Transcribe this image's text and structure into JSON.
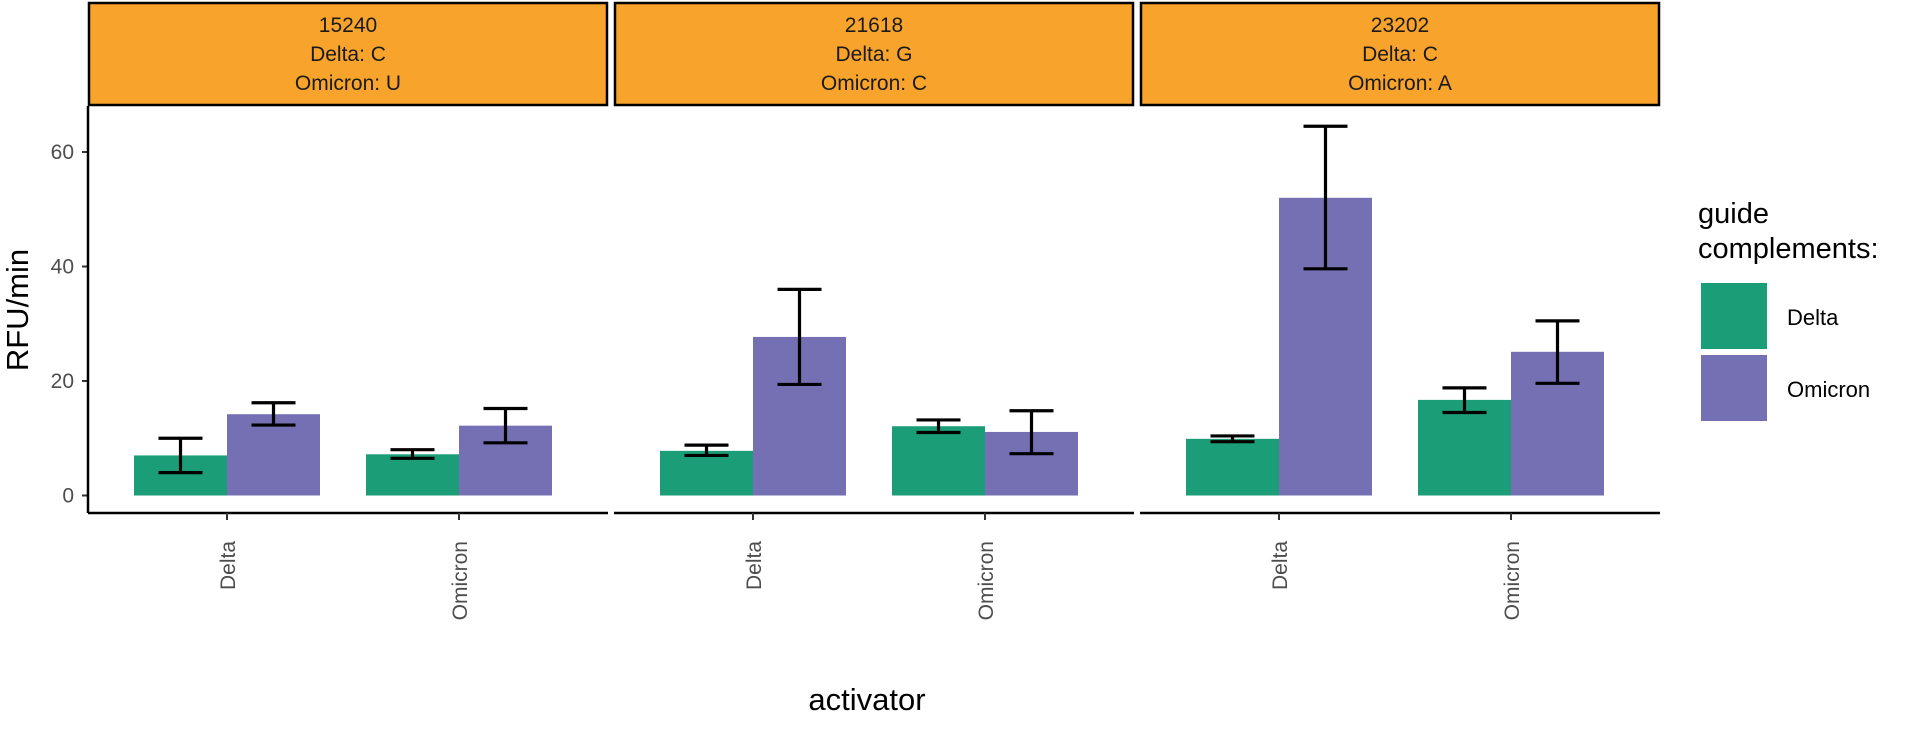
{
  "chart_data": {
    "type": "bar",
    "xlabel": "activator",
    "ylabel": "RFU/min",
    "ylim": [
      0,
      67
    ],
    "yticks": [
      0,
      20,
      40,
      60
    ],
    "categories": [
      "Delta",
      "Omicron"
    ],
    "legend": {
      "title_lines": [
        "guide",
        "complements:"
      ],
      "placement": "right",
      "items": [
        "Delta",
        "Omicron"
      ]
    },
    "colors": {
      "Delta": "#1b9e77",
      "Omicron": "#7570b3",
      "strip": "#f8a42c"
    },
    "panels": [
      {
        "strip": [
          "15240",
          "Delta: C",
          "Omicron: U"
        ],
        "series": [
          {
            "name": "Delta",
            "values": [
              7.0,
              7.2
            ],
            "err_low": [
              4.0,
              6.5
            ],
            "err_high": [
              10.0,
              8.0
            ]
          },
          {
            "name": "Omicron",
            "values": [
              14.2,
              12.2
            ],
            "err_low": [
              12.3,
              9.2
            ],
            "err_high": [
              16.2,
              15.2
            ]
          }
        ]
      },
      {
        "strip": [
          "21618",
          "Delta: G",
          "Omicron: C"
        ],
        "series": [
          {
            "name": "Delta",
            "values": [
              7.8,
              12.1
            ],
            "err_low": [
              7.0,
              11.0
            ],
            "err_high": [
              8.8,
              13.2
            ]
          },
          {
            "name": "Omicron",
            "values": [
              27.7,
              11.1
            ],
            "err_low": [
              19.4,
              7.3
            ],
            "err_high": [
              36.0,
              14.8
            ]
          }
        ]
      },
      {
        "strip": [
          "23202",
          "Delta: C",
          "Omicron: A"
        ],
        "series": [
          {
            "name": "Delta",
            "values": [
              9.9,
              16.7
            ],
            "err_low": [
              9.4,
              14.5
            ],
            "err_high": [
              10.4,
              18.8
            ]
          },
          {
            "name": "Omicron",
            "values": [
              52.0,
              25.1
            ],
            "err_low": [
              39.6,
              19.6
            ],
            "err_high": [
              64.5,
              30.5
            ]
          }
        ]
      }
    ]
  }
}
